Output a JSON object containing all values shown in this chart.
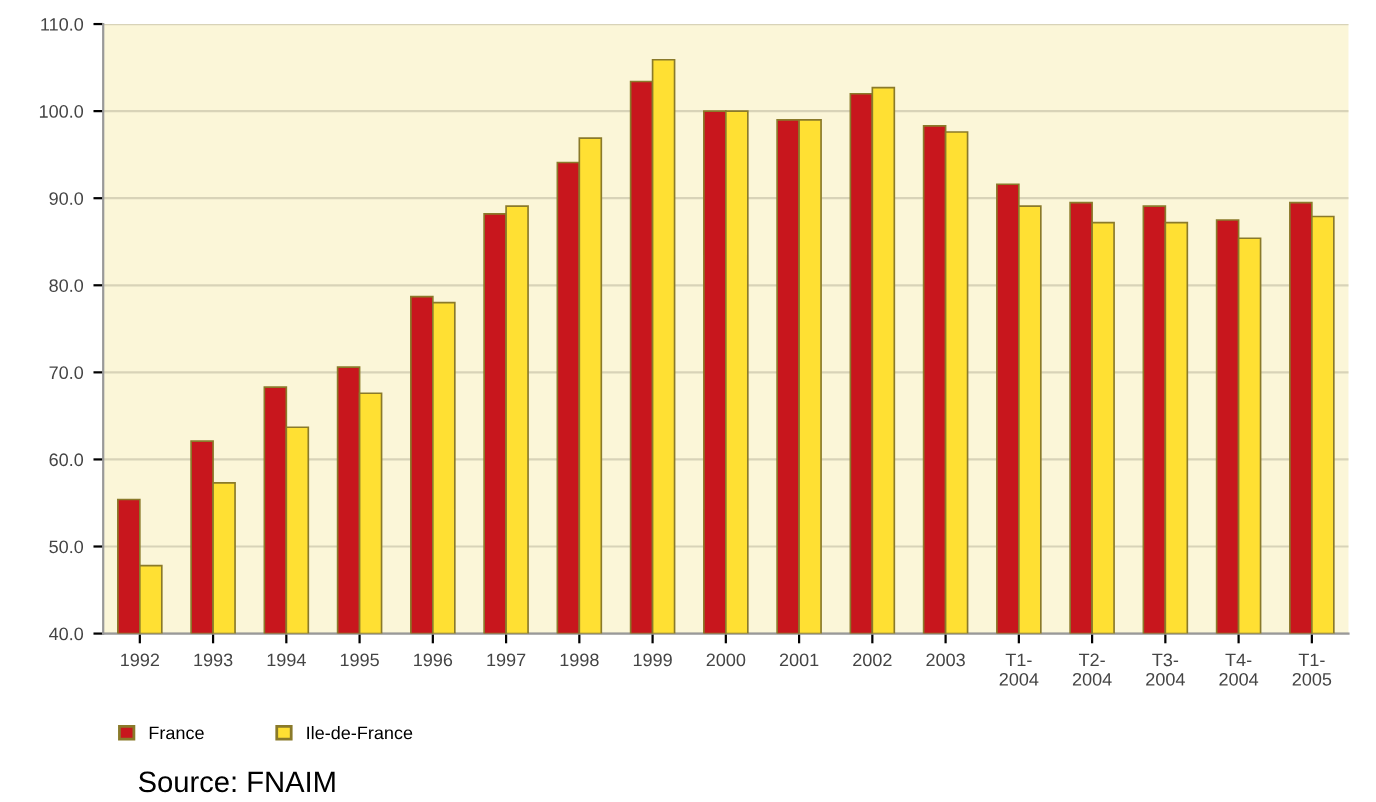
{
  "chart_data": {
    "type": "bar",
    "categories": [
      "1992",
      "1993",
      "1994",
      "1995",
      "1996",
      "1997",
      "1998",
      "1999",
      "2000",
      "2001",
      "2002",
      "2003",
      "T1-\n2004",
      "T2-\n2004",
      "T3-\n2004",
      "T4-\n2004",
      "T1-\n2005"
    ],
    "series": [
      {
        "name": "France",
        "color": "#c8161d",
        "values": [
          55.4,
          62.1,
          68.3,
          70.6,
          78.7,
          88.2,
          94.1,
          103.4,
          100.0,
          99.0,
          102.0,
          98.3,
          91.6,
          89.5,
          89.1,
          87.5,
          89.5
        ]
      },
      {
        "name": "Ile-de-France",
        "color": "#ffe033",
        "values": [
          47.8,
          57.3,
          63.7,
          67.6,
          78.0,
          89.1,
          96.9,
          105.9,
          100.0,
          99.0,
          102.7,
          97.6,
          89.1,
          87.2,
          87.2,
          85.4,
          87.9
        ]
      }
    ],
    "ylim": [
      40,
      110
    ],
    "yticks": [
      {
        "value": 40,
        "label": "40.0"
      },
      {
        "value": 50,
        "label": "50.0"
      },
      {
        "value": 60,
        "label": "60.0"
      },
      {
        "value": 70,
        "label": "70.0"
      },
      {
        "value": 80,
        "label": "80.0"
      },
      {
        "value": 90,
        "label": "90.0"
      },
      {
        "value": 100,
        "label": "100.0"
      },
      {
        "value": 110,
        "label": "110.0"
      }
    ],
    "grid": "y",
    "legend": "bottom left",
    "annotations": [
      "Source: FNAIM"
    ]
  }
}
